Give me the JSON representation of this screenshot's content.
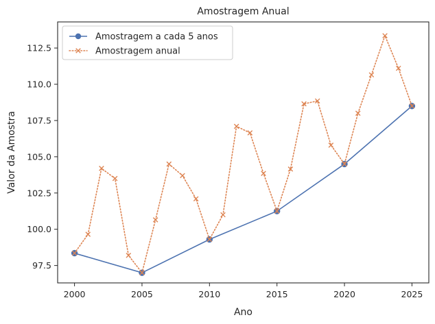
{
  "chart_data": {
    "type": "line",
    "title": "Amostragem Anual",
    "xlabel": "Ano",
    "ylabel": "Valor da Amostra",
    "xlim": [
      1998.75,
      2026.25
    ],
    "ylim": [
      96.3,
      114.3
    ],
    "xticks": [
      2000,
      2005,
      2010,
      2015,
      2020,
      2025
    ],
    "yticks": [
      97.5,
      100.0,
      102.5,
      105.0,
      107.5,
      110.0,
      112.5
    ],
    "grid": false,
    "legend_position": "top-left",
    "series": [
      {
        "name": "Amostragem a cada 5 anos",
        "color": "#4c72b0",
        "line_style": "solid",
        "marker": "circle",
        "x": [
          2000,
          2005,
          2010,
          2015,
          2020,
          2025
        ],
        "y": [
          98.35,
          97.0,
          99.3,
          101.25,
          104.5,
          108.5
        ]
      },
      {
        "name": "Amostragem anual",
        "color": "#dd8452",
        "line_style": "dotted",
        "marker": "x",
        "x": [
          2000,
          2001,
          2002,
          2003,
          2004,
          2005,
          2006,
          2007,
          2008,
          2009,
          2010,
          2011,
          2012,
          2013,
          2014,
          2015,
          2016,
          2017,
          2018,
          2019,
          2020,
          2021,
          2022,
          2023,
          2024,
          2025
        ],
        "y": [
          98.35,
          99.65,
          104.2,
          103.5,
          98.2,
          97.0,
          100.65,
          104.5,
          103.7,
          102.1,
          99.3,
          101.0,
          107.1,
          106.65,
          103.85,
          101.25,
          104.15,
          108.65,
          108.85,
          105.8,
          104.5,
          108.0,
          110.65,
          113.35,
          111.1,
          108.5
        ]
      }
    ]
  }
}
